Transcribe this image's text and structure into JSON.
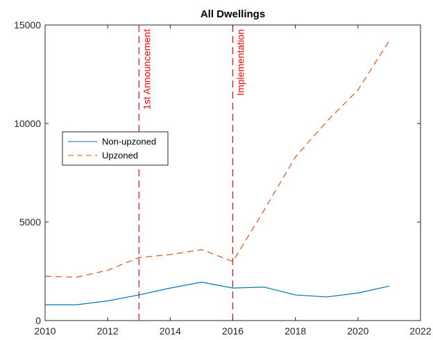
{
  "chart_data": {
    "type": "line",
    "title": "All Dwellings",
    "xlabel": "",
    "ylabel": "",
    "xlim": [
      2010,
      2022
    ],
    "ylim": [
      0,
      15000
    ],
    "xticks": [
      2010,
      2012,
      2014,
      2016,
      2018,
      2020,
      2022
    ],
    "yticks": [
      0,
      5000,
      10000,
      15000
    ],
    "x": [
      2010,
      2011,
      2012,
      2013,
      2014,
      2015,
      2016,
      2017,
      2018,
      2019,
      2020,
      2021
    ],
    "series": [
      {
        "name": "Non-upzoned",
        "values": [
          800,
          800,
          1000,
          1300,
          1650,
          1950,
          1650,
          1700,
          1300,
          1200,
          1400,
          1750
        ],
        "color": "#0072BD",
        "style": "solid"
      },
      {
        "name": "Upzoned",
        "values": [
          2250,
          2200,
          2550,
          3200,
          3350,
          3600,
          3000,
          5600,
          8300,
          10100,
          11700,
          14200
        ],
        "color": "#D95319",
        "style": "dashed"
      }
    ],
    "annotations": [
      {
        "x": 2013,
        "label": "1st Announcement",
        "color": "#FF0000"
      },
      {
        "x": 2016,
        "label": "Implementation",
        "color": "#FF0000"
      }
    ],
    "grid": false,
    "legend_position": "upper-left"
  }
}
